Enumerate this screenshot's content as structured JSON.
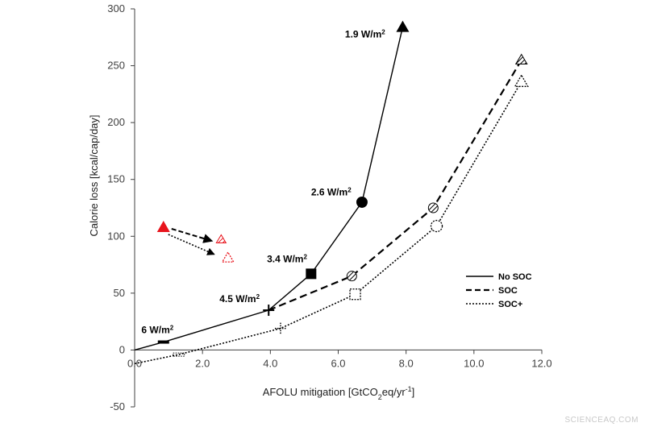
{
  "chart_data": {
    "type": "line",
    "xlabel": "AFOLU mitigation [GtCO",
    "xlabel_sub": "2",
    "xlabel_mid": "eq/yr",
    "xlabel_sup": "-1",
    "xlabel_end": "]",
    "ylabel": "Calorie loss [kcal/cap/day]",
    "xlim": [
      0,
      12
    ],
    "ylim": [
      -50,
      300
    ],
    "xticks": [
      {
        "v": 0,
        "label": "0.0"
      },
      {
        "v": 2,
        "label": "2.0"
      },
      {
        "v": 4,
        "label": "4.0"
      },
      {
        "v": 6,
        "label": "6.0"
      },
      {
        "v": 8,
        "label": "8.0"
      },
      {
        "v": 10,
        "label": "10.0"
      },
      {
        "v": 12,
        "label": "12.0"
      }
    ],
    "yticks": [
      {
        "v": -50,
        "label": "-50"
      },
      {
        "v": 0,
        "label": "0"
      },
      {
        "v": 50,
        "label": "50"
      },
      {
        "v": 100,
        "label": "100"
      },
      {
        "v": 150,
        "label": "150"
      },
      {
        "v": 200,
        "label": "200"
      },
      {
        "v": 250,
        "label": "250"
      },
      {
        "v": 300,
        "label": "300"
      }
    ],
    "series": [
      {
        "name": "No SOC",
        "style": "solid",
        "points": [
          [
            0,
            0
          ],
          [
            0.85,
            7
          ],
          [
            3.95,
            35
          ],
          [
            5.2,
            67
          ],
          [
            6.7,
            130
          ],
          [
            7.9,
            284
          ]
        ],
        "markers": [
          "none",
          "dash",
          "plus",
          "square",
          "circle",
          "triangle"
        ]
      },
      {
        "name": "SOC",
        "style": "dashed",
        "points": [
          [
            3.95,
            35
          ],
          [
            6.4,
            65
          ],
          [
            8.8,
            125
          ],
          [
            11.4,
            255
          ]
        ],
        "markers": [
          "none",
          "hatch-circle",
          "hatch-circle",
          "hatch-triangle"
        ]
      },
      {
        "name": "SOC+",
        "style": "dotted",
        "points": [
          [
            0,
            -12
          ],
          [
            1.3,
            -4
          ],
          [
            4.3,
            19
          ],
          [
            6.5,
            49
          ],
          [
            8.9,
            109
          ],
          [
            11.4,
            236
          ]
        ],
        "markers": [
          "none",
          "dotted-dash",
          "dotted-plus",
          "dotted-square",
          "dotted-circle",
          "dotted-triangle"
        ]
      }
    ],
    "annotations": [
      {
        "text": "6 W/m",
        "sup": "2",
        "x": 0.2,
        "y": 15
      },
      {
        "text": "4.5 W/m",
        "sup": "2",
        "x": 2.5,
        "y": 42
      },
      {
        "text": "3.4 W/m",
        "sup": "2",
        "x": 3.9,
        "y": 77
      },
      {
        "text": "2.6 W/m",
        "sup": "2",
        "x": 5.2,
        "y": 136
      },
      {
        "text": "1.9 W/m",
        "sup": "2",
        "x": 6.2,
        "y": 275
      }
    ],
    "inset_legend": {
      "origin": [
        0.85,
        108
      ],
      "to_soc": [
        2.55,
        97
      ],
      "to_socplus": [
        2.75,
        81
      ],
      "accent": "#e8141c"
    },
    "legend": [
      {
        "label": "No SOC",
        "style": "solid"
      },
      {
        "label": "SOC",
        "style": "dashed"
      },
      {
        "label": "SOC+",
        "style": "dotted"
      }
    ],
    "legend_position": "right-middle"
  },
  "watermark": "SCIENCEAQ.COM",
  "colors": {
    "line": "#000000",
    "accent": "#e8141c",
    "axis": "#404040"
  }
}
